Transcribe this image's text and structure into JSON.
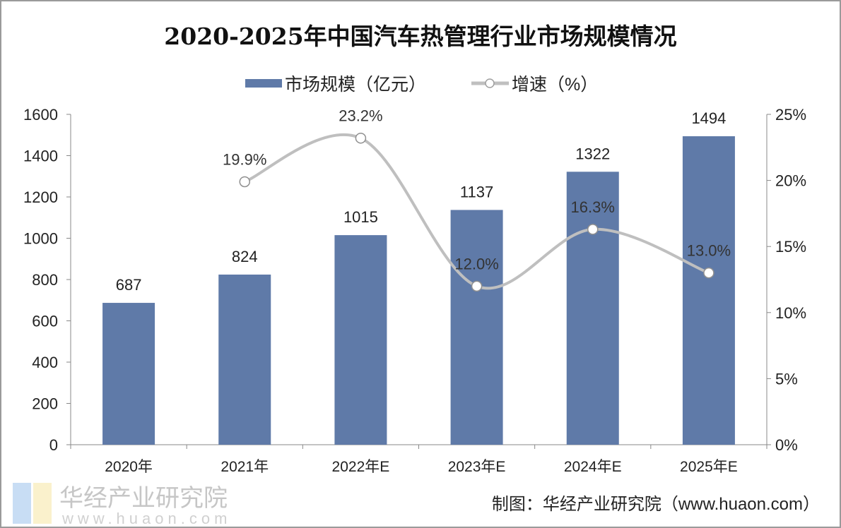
{
  "chart_data": {
    "type": "bar+line",
    "title": "2020-2025年中国汽车热管理行业市场规模情况",
    "categories": [
      "2020年",
      "2021年",
      "2022年E",
      "2023年E",
      "2024年E",
      "2025年E"
    ],
    "series": [
      {
        "name": "市场规模（亿元）",
        "type": "bar",
        "axis": "left",
        "values": [
          687,
          824,
          1015,
          1137,
          1322,
          1494
        ],
        "labels": [
          "687",
          "824",
          "1015",
          "1137",
          "1322",
          "1494"
        ]
      },
      {
        "name": "增速（%）",
        "type": "line",
        "axis": "right",
        "values": [
          null,
          19.9,
          23.2,
          12.0,
          16.3,
          13.0
        ],
        "labels": [
          "",
          "19.9%",
          "23.2%",
          "12.0%",
          "16.3%",
          "13.0%"
        ]
      }
    ],
    "left_axis": {
      "range": [
        0,
        1600
      ],
      "ticks": [
        "0",
        "200",
        "400",
        "600",
        "800",
        "1000",
        "1200",
        "1400",
        "1600"
      ]
    },
    "right_axis": {
      "range": [
        0,
        25
      ],
      "ticks": [
        "0%",
        "5%",
        "10%",
        "15%",
        "20%",
        "25%"
      ]
    },
    "grid": false,
    "legend_position": "top",
    "colors": {
      "bar": "#5f7aa8",
      "line": "#bfbfbf",
      "marker_fill": "#ffffff"
    }
  },
  "source": "制图：华经产业研究院（www.huaon.com）",
  "watermark": {
    "text": "华经产业研究院",
    "url_text": "www.huaon.com"
  }
}
